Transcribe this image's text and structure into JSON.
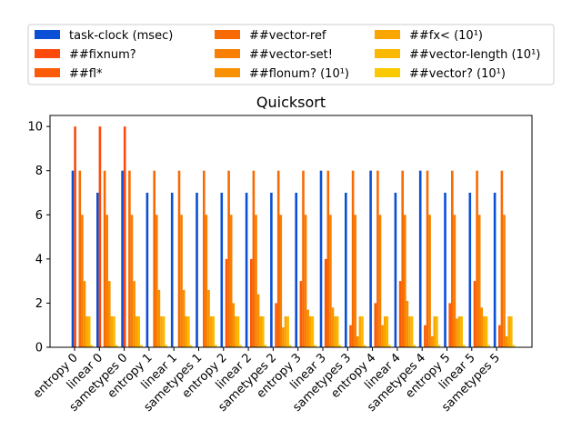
{
  "chart_data": {
    "type": "bar",
    "title": "Quicksort",
    "xlabel": "",
    "ylabel": "",
    "ylim": [
      0,
      10.5
    ],
    "yticks": [
      0,
      2,
      4,
      6,
      8,
      10
    ],
    "grid": false,
    "legend_position": "top",
    "categories": [
      "entropy 0",
      "linear 0",
      "sametypes 0",
      "entropy 1",
      "linear 1",
      "sametypes 1",
      "entropy 2",
      "linear 2",
      "sametypes 2",
      "entropy 3",
      "linear 3",
      "sametypes 3",
      "entropy 4",
      "linear 4",
      "sametypes 4",
      "entropy 5",
      "linear 5",
      "sametypes 5"
    ],
    "series": [
      {
        "name": "task-clock (msec)",
        "color": "#0a4fd6",
        "values": [
          8,
          7,
          8,
          7,
          7,
          7,
          7,
          7,
          7,
          7,
          8,
          7,
          8,
          7,
          8,
          7,
          7,
          7
        ]
      },
      {
        "name": "##fixnum?",
        "color": "#fd4a0c",
        "values": [
          10,
          10,
          10,
          0,
          0,
          0,
          0,
          0,
          0,
          0,
          0,
          0,
          0,
          0,
          0,
          0,
          0,
          0
        ]
      },
      {
        "name": "##fl*",
        "color": "#fb5a07",
        "values": [
          0,
          0,
          0,
          0,
          0,
          0,
          4,
          4,
          2,
          3,
          4,
          1,
          2,
          3,
          1,
          2,
          3,
          1
        ]
      },
      {
        "name": "##vector-ref",
        "color": "#f86b03",
        "values": [
          8,
          8,
          8,
          8,
          8,
          8,
          8,
          8,
          8,
          8,
          8,
          8,
          8,
          8,
          8,
          8,
          8,
          8
        ]
      },
      {
        "name": "##vector-set!",
        "color": "#f87f00",
        "values": [
          6,
          6,
          6,
          6,
          6,
          6,
          6,
          6,
          6,
          6,
          6,
          6,
          6,
          6,
          6,
          6,
          6,
          6
        ]
      },
      {
        "name": "##flonum? (10¹)",
        "color": "#f99000",
        "values": [
          3,
          3,
          3,
          2.6,
          2.6,
          2.6,
          2,
          2.4,
          0.9,
          1.7,
          1.8,
          0.5,
          1,
          2.1,
          0.5,
          1.3,
          1.8,
          0.5
        ]
      },
      {
        "name": "##fx< (10¹)",
        "color": "#faa500",
        "values": [
          1.4,
          1.4,
          1.4,
          1.4,
          1.4,
          1.4,
          1.4,
          1.4,
          1.4,
          1.4,
          1.4,
          1.4,
          1.4,
          1.4,
          1.4,
          1.4,
          1.4,
          1.4
        ]
      },
      {
        "name": "##vector-length (10¹)",
        "color": "#fbb800",
        "values": [
          1.4,
          1.4,
          1.4,
          1.4,
          1.4,
          1.4,
          1.4,
          1.4,
          1.4,
          1.4,
          1.4,
          1.4,
          1.4,
          1.4,
          1.4,
          1.4,
          1.4,
          1.4
        ]
      },
      {
        "name": "##vector? (10¹)",
        "color": "#fbc900",
        "values": [
          0.1,
          0.1,
          0.1,
          0.1,
          0.1,
          0.1,
          0.1,
          0.1,
          0.1,
          0.1,
          0.1,
          0.1,
          0.1,
          0.1,
          0.1,
          0.1,
          0.1,
          0.1
        ]
      }
    ]
  }
}
